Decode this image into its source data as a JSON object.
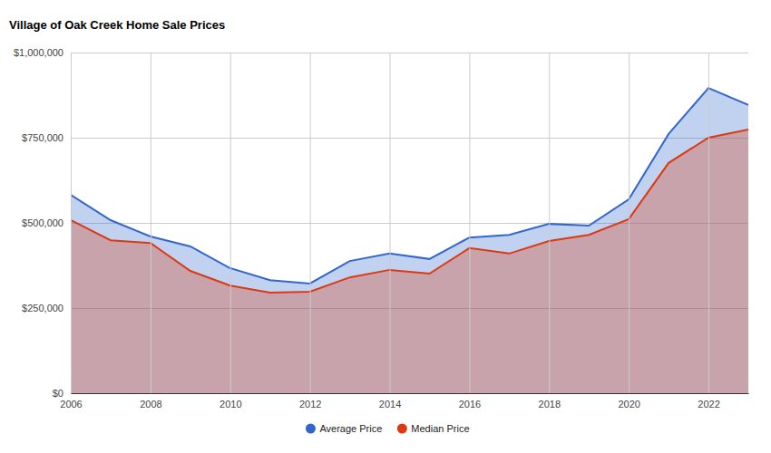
{
  "chart_data": {
    "type": "area",
    "title": "Village of Oak Creek Home Sale Prices",
    "x": [
      2006,
      2007,
      2008,
      2009,
      2010,
      2011,
      2012,
      2013,
      2014,
      2015,
      2016,
      2017,
      2018,
      2019,
      2020,
      2021,
      2022,
      2023
    ],
    "series": [
      {
        "name": "Average Price",
        "color": "#3366cc",
        "values": [
          582000,
          508000,
          460000,
          431000,
          367000,
          332000,
          322000,
          388000,
          410000,
          394000,
          457000,
          465000,
          497000,
          492000,
          569000,
          761000,
          896000,
          846000
        ]
      },
      {
        "name": "Median Price",
        "color": "#dc3912",
        "values": [
          508000,
          449000,
          441000,
          359000,
          316000,
          295000,
          298000,
          340000,
          362000,
          351000,
          426000,
          410000,
          447000,
          465000,
          511000,
          676000,
          750000,
          774000
        ]
      }
    ],
    "xlim": [
      2006,
      2023
    ],
    "xticks": [
      2006,
      2008,
      2010,
      2012,
      2014,
      2016,
      2018,
      2020,
      2022
    ],
    "ylim": [
      0,
      1000000
    ],
    "yticks": [
      {
        "value": 0,
        "label": "$0"
      },
      {
        "value": 250000,
        "label": "$250,000"
      },
      {
        "value": 500000,
        "label": "$500,000"
      },
      {
        "value": 750000,
        "label": "$750,000"
      },
      {
        "value": 1000000,
        "label": "$1,000,000"
      }
    ],
    "grid": true,
    "legend": "bottom",
    "marker": "circle"
  }
}
